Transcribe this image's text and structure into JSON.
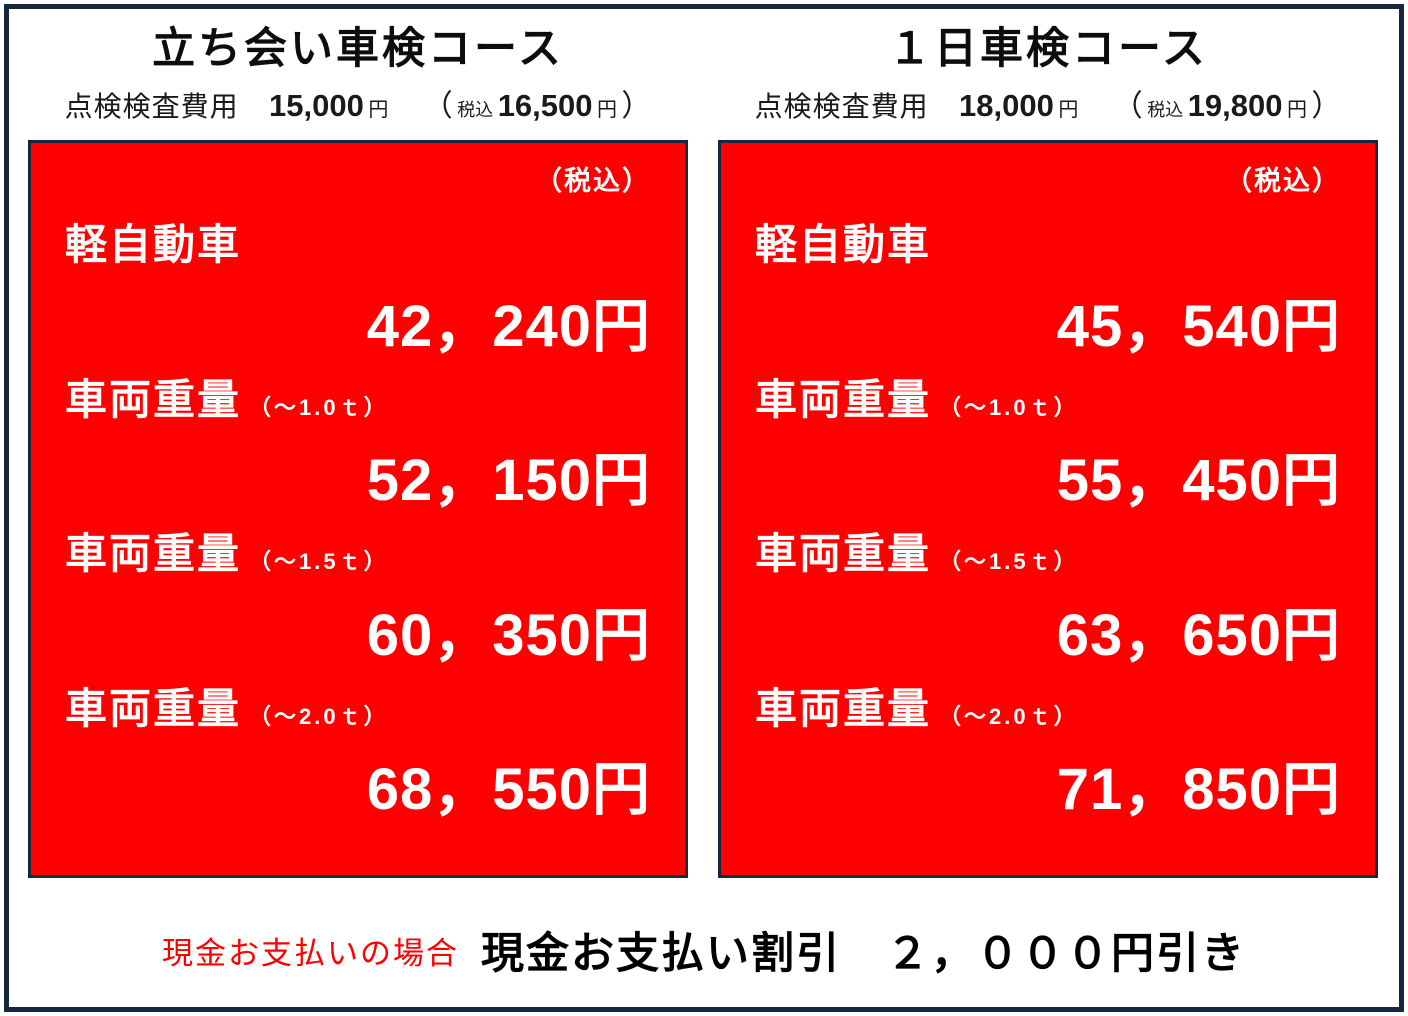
{
  "page": {
    "background": "#ffffff",
    "frame_color": "#17283e",
    "panel_red": "#ff0000"
  },
  "courses": [
    {
      "title": "立ち会い車検コース",
      "fee": {
        "label": "点検検査費用",
        "amount": "15,000",
        "unit": "円",
        "tax_open": "（",
        "tax_label": "税込",
        "tax_amount": "16,500",
        "tax_unit": "円",
        "tax_close": "）"
      },
      "panel": {
        "tax_note": "（税込）",
        "rows": [
          {
            "label": "軽自動車",
            "annotation": "",
            "price": "42，240円"
          },
          {
            "label": "車両重量",
            "annotation": "（～1.0ｔ）",
            "price": "52，150円"
          },
          {
            "label": "車両重量",
            "annotation": "（～1.5ｔ）",
            "price": "60，350円"
          },
          {
            "label": "車両重量",
            "annotation": "（～2.0ｔ）",
            "price": "68，550円"
          }
        ]
      }
    },
    {
      "title": "１日車検コース",
      "fee": {
        "label": "点検検査費用",
        "amount": "18,000",
        "unit": "円",
        "tax_open": "（",
        "tax_label": "税込",
        "tax_amount": "19,800",
        "tax_unit": "円",
        "tax_close": "）"
      },
      "panel": {
        "tax_note": "（税込）",
        "rows": [
          {
            "label": "軽自動車",
            "annotation": "",
            "price": "45，540円"
          },
          {
            "label": "車両重量",
            "annotation": "（～1.0ｔ）",
            "price": "55，450円"
          },
          {
            "label": "車両重量",
            "annotation": "（～1.5ｔ）",
            "price": "63，650円"
          },
          {
            "label": "車両重量",
            "annotation": "（～2.0ｔ）",
            "price": "71，850円"
          }
        ]
      }
    }
  ],
  "footer": {
    "condition": "現金お支払いの場合",
    "discount": "現金お支払い割引　２，０００円引き"
  }
}
